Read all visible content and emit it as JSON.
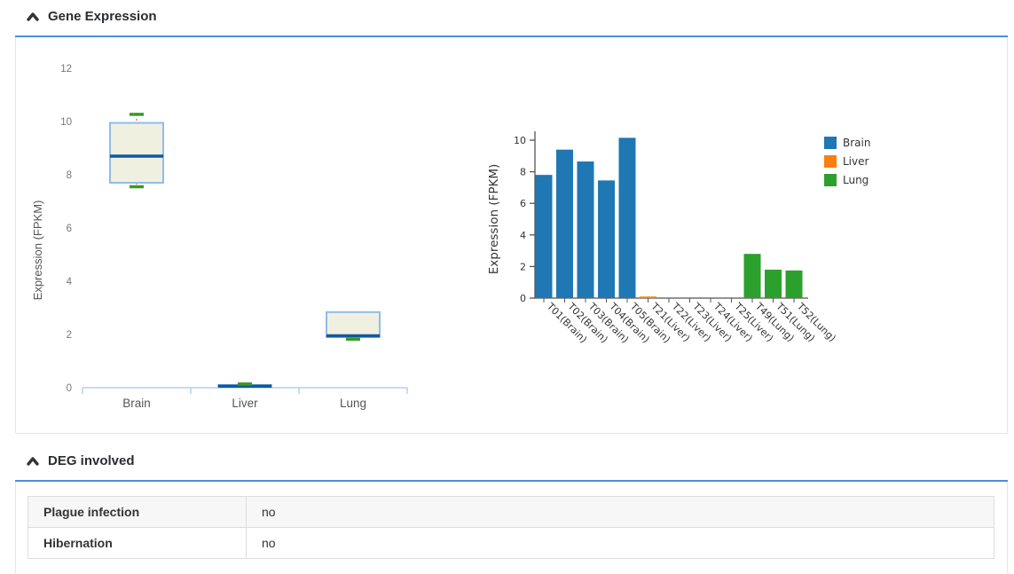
{
  "accent_color": "#4a90d9",
  "sections": [
    {
      "title": "Gene Expression"
    },
    {
      "title": "DEG involved"
    }
  ],
  "chart_data": [
    {
      "type": "box",
      "ylabel": "Expression (FPKM)",
      "categories": [
        "Brain",
        "Liver",
        "Lung"
      ],
      "yticks": [
        0,
        2,
        4,
        6,
        8,
        10,
        12
      ],
      "ylim": [
        0,
        13
      ],
      "boxes": [
        {
          "category": "Brain",
          "low": 7.55,
          "q1": 7.7,
          "median": 8.7,
          "q3": 9.95,
          "high": 10.27
        },
        {
          "category": "Liver",
          "low": 0.03,
          "q1": 0.03,
          "median": 0.06,
          "q3": 0.1,
          "high": 0.14
        },
        {
          "category": "Lung",
          "low": 1.82,
          "q1": 1.9,
          "median": 1.95,
          "q3": 2.84,
          "high": 2.84
        }
      ],
      "colors": {
        "box_fill": "#f0f0e1",
        "box_stroke": "#92bce8",
        "median": "#1158a0",
        "cap": "#3a9b21",
        "whisker": "#e07b66",
        "axis": "#b3d1ed",
        "text": "#666666",
        "tick_text": "#777777"
      }
    },
    {
      "type": "bar",
      "ylabel": "Expression (FPKM)",
      "yticks": [
        0,
        2,
        4,
        6,
        8,
        10
      ],
      "ylim": [
        0,
        10.8
      ],
      "categories": [
        "T01(Brain)",
        "T02(Brain)",
        "T03(Brain)",
        "T04(Brain)",
        "T05(Brain)",
        "T21(Liver)",
        "T22(Liver)",
        "T23(Liver)",
        "T24(Liver)",
        "T25(Liver)",
        "T49(Lung)",
        "T51(Lung)",
        "T52(Lung)"
      ],
      "values": [
        7.8,
        9.4,
        8.65,
        7.45,
        10.15,
        0.1,
        0,
        0,
        0,
        0,
        2.8,
        1.8,
        1.75
      ],
      "groups": [
        "Brain",
        "Brain",
        "Brain",
        "Brain",
        "Brain",
        "Liver",
        "Liver",
        "Liver",
        "Liver",
        "Liver",
        "Lung",
        "Lung",
        "Lung"
      ],
      "legend": [
        {
          "label": "Brain",
          "color": "#1f77b4"
        },
        {
          "label": "Liver",
          "color": "#ff7f0e"
        },
        {
          "label": "Lung",
          "color": "#2ca02c"
        }
      ],
      "legend_position": "right",
      "axis_color": "#555555",
      "text_color": "#333333"
    }
  ],
  "deg_table": {
    "rows": [
      {
        "label": "Plague infection",
        "value": "no"
      },
      {
        "label": "Hibernation",
        "value": "no"
      }
    ]
  }
}
